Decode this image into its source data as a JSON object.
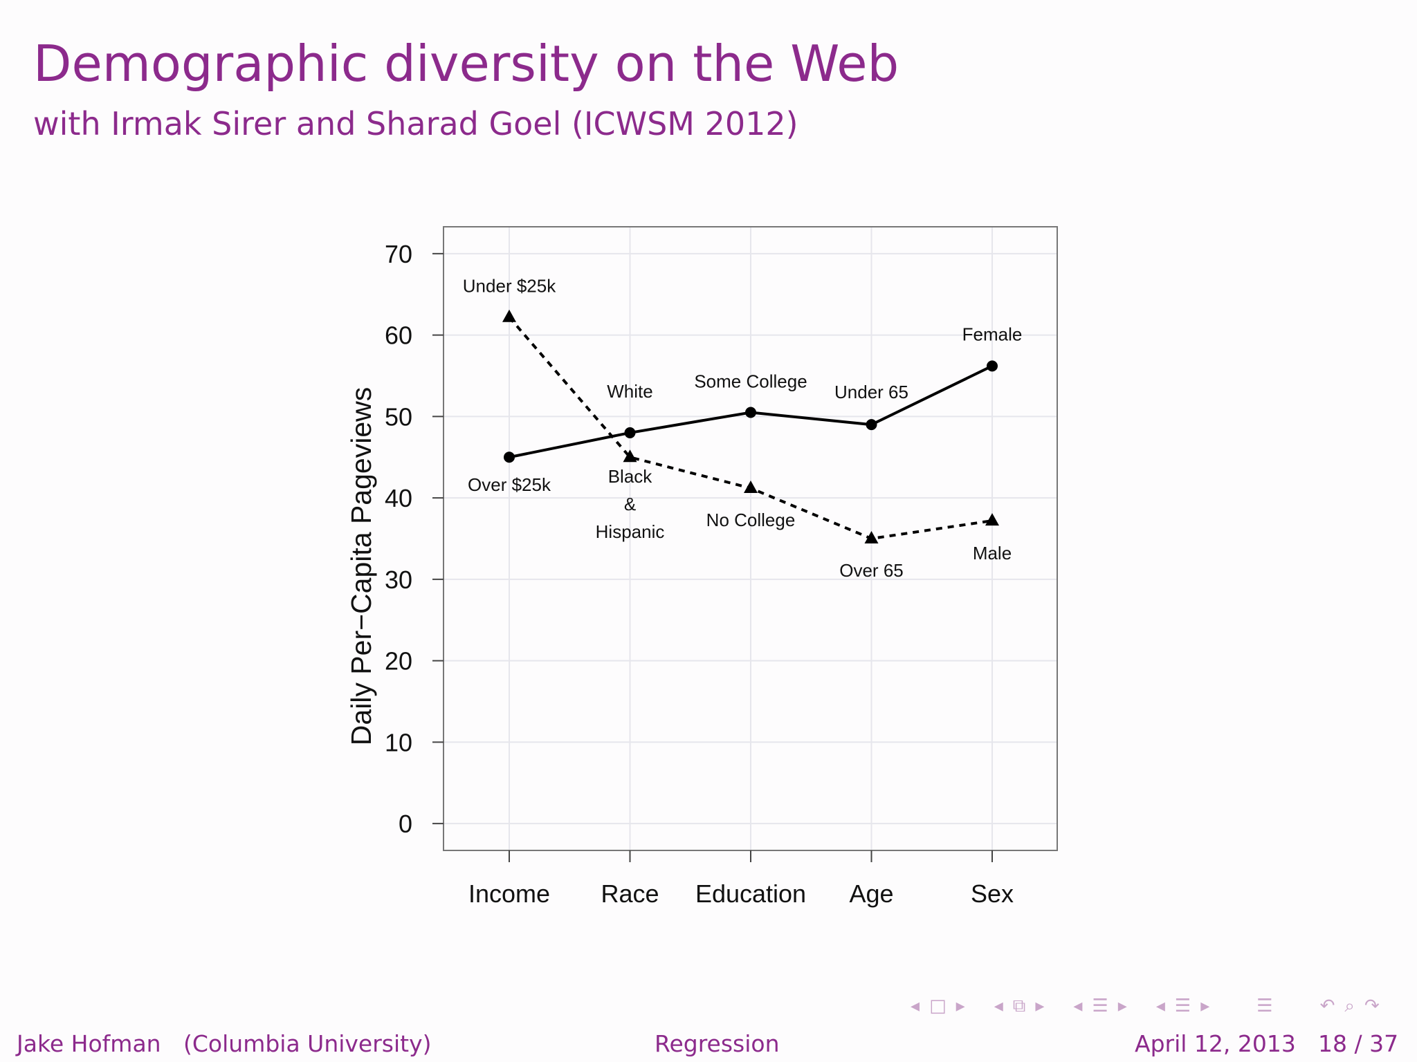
{
  "slide": {
    "title": "Demographic diversity on the Web",
    "subtitle": "with Irmak Sirer and Sharad Goel (ICWSM 2012)"
  },
  "footer": {
    "author": "Jake Hofman",
    "affiliation": "(Columbia University)",
    "topic": "Regression",
    "date": "April 12, 2013",
    "page": "18 / 37"
  },
  "colors": {
    "theme": "#8c2a8c",
    "nav": "#c9a5c9",
    "line": "#000000",
    "grid": "#e6e6ec",
    "frame": "#777777"
  },
  "nav_icons": [
    "arrow-left-icon",
    "frame-icon",
    "arrow-right-icon",
    "arrow-left-icon",
    "subsection-icon",
    "arrow-right-icon",
    "arrow-left-icon",
    "section-icon",
    "arrow-right-icon",
    "arrow-left-icon",
    "toc-icon",
    "arrow-right-icon",
    "toc-icon",
    "undo-icon",
    "search-icon",
    "redo-icon"
  ],
  "chart_data": {
    "type": "line",
    "title": "",
    "xlabel": "",
    "ylabel": "Daily Per−Capita Pageviews",
    "categories": [
      "Income",
      "Race",
      "Education",
      "Age",
      "Sex"
    ],
    "yticks": [
      0,
      10,
      20,
      30,
      40,
      50,
      60,
      70
    ],
    "ylim": [
      -3.3,
      73.3
    ],
    "grid": true,
    "legend": "none",
    "series": [
      {
        "style": "solid",
        "marker": "circle",
        "values": [
          45,
          48,
          50.5,
          49,
          56.2
        ],
        "labels": [
          "Over $25k",
          "White",
          "Some College",
          "Under 65",
          "Female"
        ]
      },
      {
        "style": "dashed",
        "marker": "triangle",
        "values": [
          62.2,
          45,
          41.2,
          35,
          37.2
        ],
        "labels": [
          "Under $25k",
          "Black & Hispanic",
          "No College",
          "Over 65",
          "Male"
        ]
      }
    ]
  }
}
